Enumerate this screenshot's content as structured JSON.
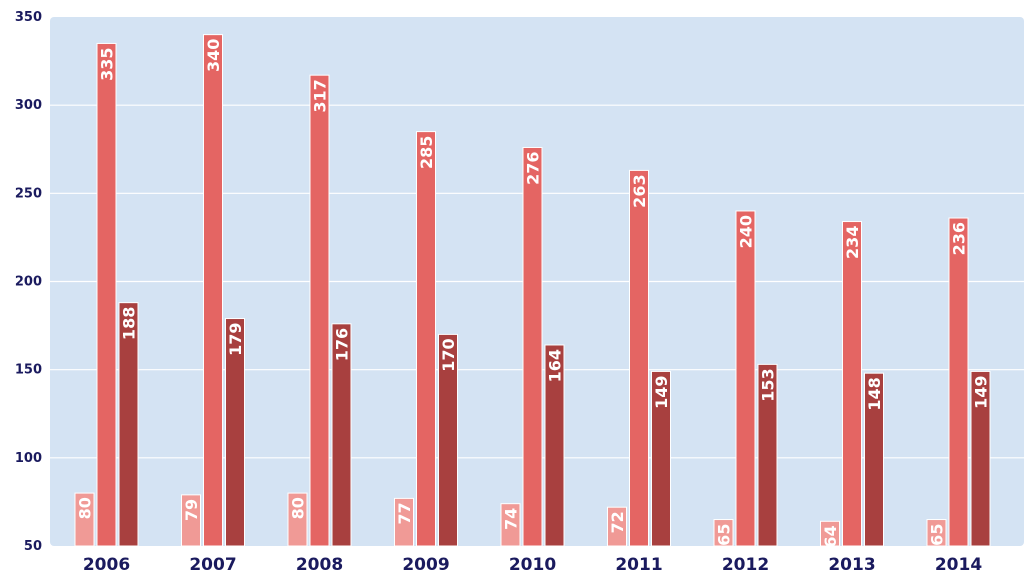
{
  "chart_data": {
    "type": "bar",
    "categories": [
      "2006",
      "2007",
      "2008",
      "2009",
      "2010",
      "2011",
      "2012",
      "2013",
      "2014"
    ],
    "series": [
      {
        "values": [
          80,
          79,
          80,
          77,
          74,
          72,
          65,
          64,
          65
        ],
        "color": "#f09a96"
      },
      {
        "values": [
          335,
          340,
          317,
          285,
          276,
          263,
          240,
          234,
          236
        ],
        "color": "#e46563"
      },
      {
        "values": [
          188,
          179,
          176,
          170,
          164,
          149,
          153,
          148,
          149
        ],
        "color": "#a8403f"
      }
    ],
    "y_ticks": [
      "50",
      "100",
      "150",
      "200",
      "250",
      "300",
      "350"
    ],
    "ylim": [
      50,
      350
    ],
    "grid": true,
    "data_labels": "inside-top, rotated vertical",
    "title": "",
    "xlabel": "",
    "ylabel": "",
    "plot_background": "#d4e3f3",
    "axis_text_color": "#1a1a5e"
  }
}
